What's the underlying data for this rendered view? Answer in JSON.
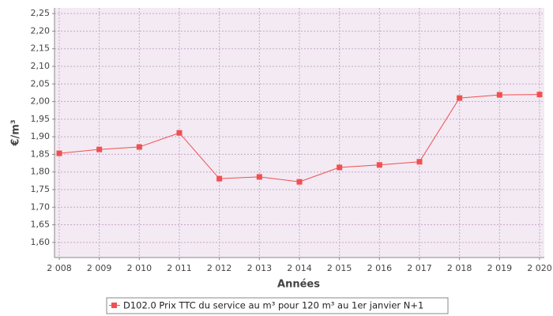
{
  "chart_data": {
    "type": "line",
    "x_label": "Années",
    "y_label": "€/m³",
    "categories": [
      "2 008",
      "2 009",
      "2 010",
      "2 011",
      "2 012",
      "2 013",
      "2 014",
      "2 015",
      "2 016",
      "2 017",
      "2 018",
      "2 019",
      "2 020"
    ],
    "series": [
      {
        "name": "D102.0 Prix TTC du service au m³ pour 120 m³ au 1er janvier N+1",
        "color": "#f05050",
        "values": [
          1.853,
          1.864,
          1.871,
          1.911,
          1.781,
          1.786,
          1.772,
          1.813,
          1.82,
          1.829,
          2.01,
          2.019,
          2.02
        ]
      }
    ],
    "ylim": [
      1.557,
      2.266
    ],
    "yticks": [
      {
        "value": 1.6,
        "label": "1,60"
      },
      {
        "value": 1.65,
        "label": "1,65"
      },
      {
        "value": 1.7,
        "label": "1,70"
      },
      {
        "value": 1.75,
        "label": "1,75"
      },
      {
        "value": 1.8,
        "label": "1,80"
      },
      {
        "value": 1.85,
        "label": "1,85"
      },
      {
        "value": 1.9,
        "label": "1,90"
      },
      {
        "value": 1.95,
        "label": "1,95"
      },
      {
        "value": 2.0,
        "label": "2,00"
      },
      {
        "value": 2.05,
        "label": "2,05"
      },
      {
        "value": 2.1,
        "label": "2,10"
      },
      {
        "value": 2.15,
        "label": "2,15"
      },
      {
        "value": 2.2,
        "label": "2,20"
      },
      {
        "value": 2.25,
        "label": "2,25"
      }
    ],
    "grid": true
  }
}
